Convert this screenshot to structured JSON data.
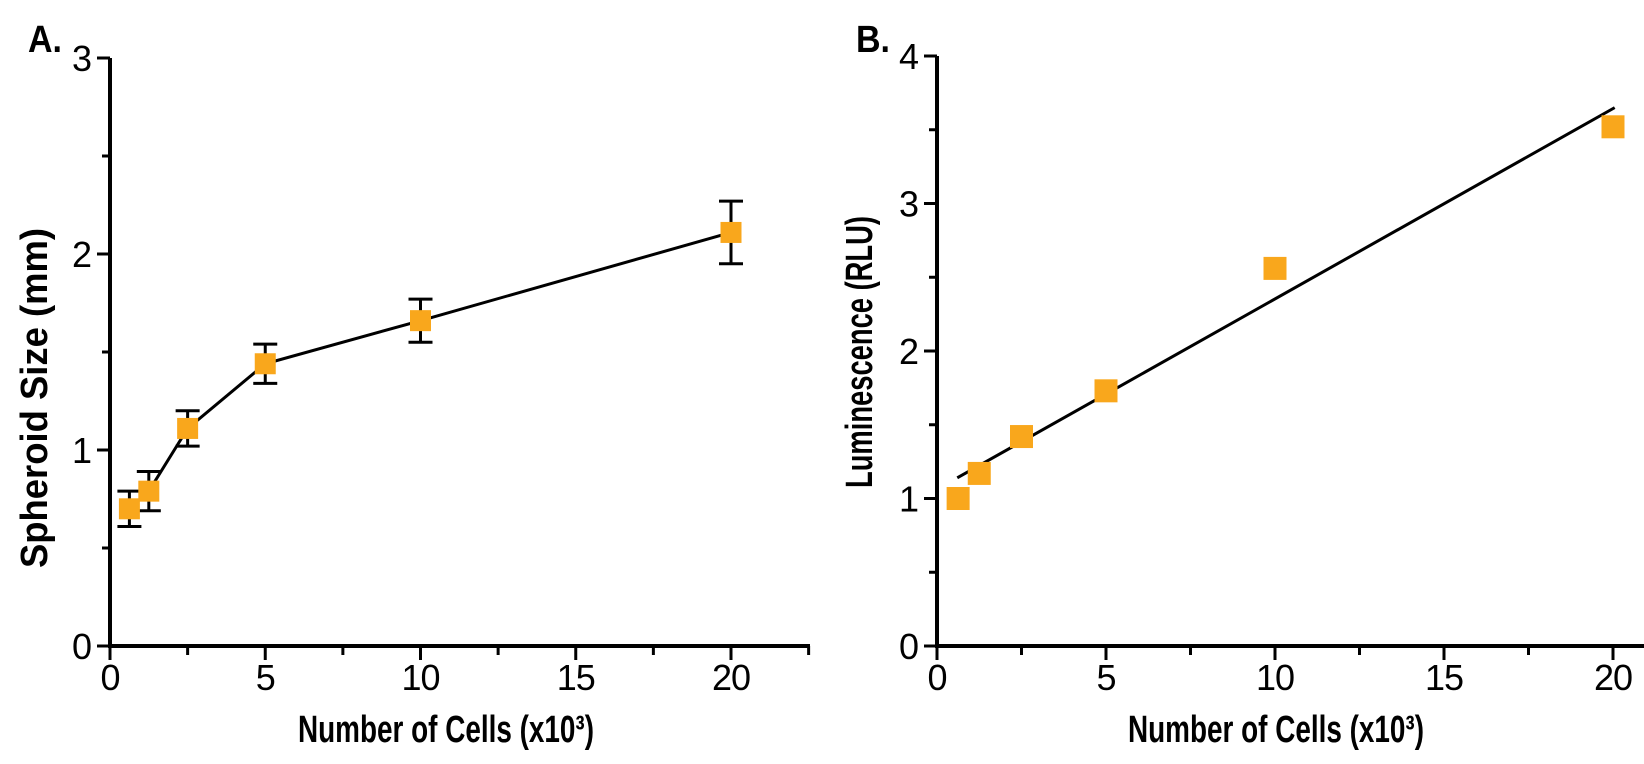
{
  "figure": {
    "background": "#ffffff",
    "axis_color": "#000000",
    "text_color": "#000000",
    "marker_color": "#F9A71C",
    "panel_a_label": "A.",
    "panel_b_label": "B.",
    "shared_x_axis_title": "Number of Cells (x10³)"
  },
  "chart_data": [
    {
      "type": "line",
      "panel_label": "A.",
      "xlabel": "Number of Cells (x10³)",
      "ylabel": "Spheroid Size (mm)",
      "x": [
        0.625,
        1.25,
        2.5,
        5,
        10,
        20
      ],
      "y": [
        0.7,
        0.79,
        1.11,
        1.44,
        1.66,
        2.11
      ],
      "y_err": [
        0.09,
        0.1,
        0.09,
        0.1,
        0.11,
        0.16
      ],
      "xlim": [
        0,
        22.5
      ],
      "ylim": [
        0,
        3
      ],
      "x_major_ticks": [
        0,
        5,
        10,
        15,
        20
      ],
      "x_minor_ticks": [
        2.5,
        7.5,
        12.5,
        17.5,
        22.5
      ],
      "y_major_ticks": [
        0,
        1,
        2,
        3
      ],
      "y_minor_ticks": [
        0.5,
        1.5,
        2.5
      ],
      "marker": "square",
      "marker_color": "#F9A71C",
      "line_color": "#000000",
      "error_bars": true,
      "grid": false,
      "legend": null
    },
    {
      "type": "scatter",
      "panel_label": "B.",
      "xlabel": "Number of Cells (x10³)",
      "ylabel": "Luminescence (RLU)",
      "x": [
        0.625,
        1.25,
        2.5,
        5,
        10,
        20
      ],
      "y": [
        1.0,
        1.17,
        1.42,
        1.73,
        2.56,
        3.52
      ],
      "trendline": {
        "x_start": 0.6,
        "y_start": 1.14,
        "x_end": 20.05,
        "y_end": 3.65
      },
      "xlim": [
        0,
        20.9
      ],
      "ylim": [
        0,
        4
      ],
      "x_major_ticks": [
        0,
        5,
        10,
        15,
        20
      ],
      "x_minor_ticks": [
        2.5,
        7.5,
        12.5,
        17.5
      ],
      "y_major_ticks": [
        0,
        1,
        2,
        3,
        4
      ],
      "y_minor_ticks": [
        0.5,
        1.5,
        2.5,
        3.5
      ],
      "marker": "square",
      "marker_color": "#F9A71C",
      "line_color": "#000000",
      "error_bars": false,
      "grid": false,
      "legend": null
    }
  ]
}
